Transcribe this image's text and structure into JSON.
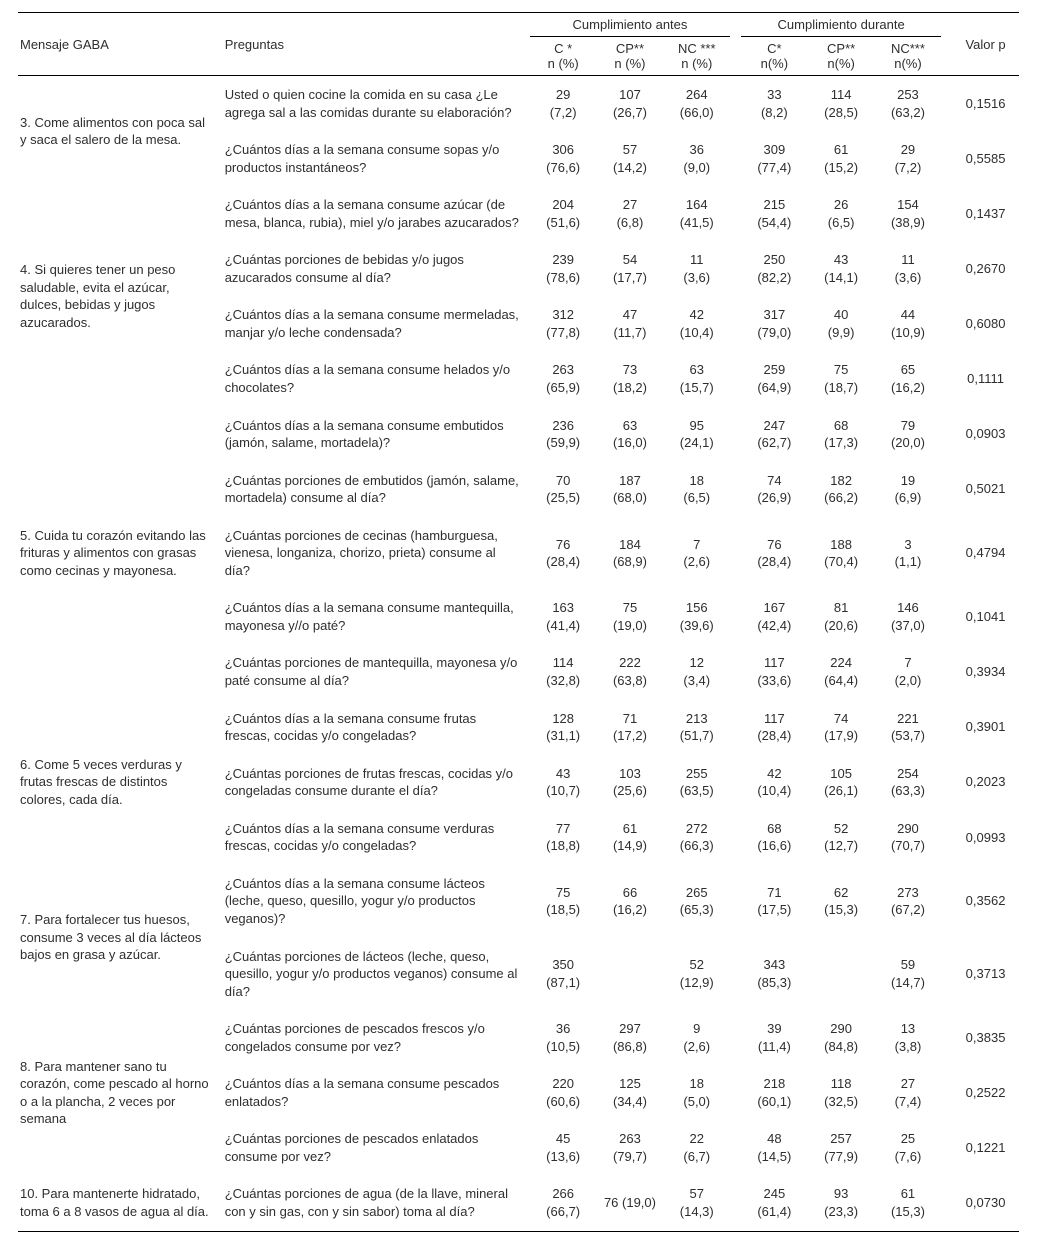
{
  "headers": {
    "mensaje": "Mensaje GABA",
    "preguntas": "Preguntas",
    "grupo_antes": "Cumplimiento antes",
    "grupo_durante": "Cumplimiento durante",
    "c_antes_l1": "C *",
    "c_antes_l2": "n (%)",
    "cp_antes_l1": "CP**",
    "cp_antes_l2": "n (%)",
    "nc_antes_l1": "NC ***",
    "nc_antes_l2": "n (%)",
    "c_dur_l1": "C*",
    "c_dur_l2": "n(%)",
    "cp_dur_l1": "CP**",
    "cp_dur_l2": "n(%)",
    "nc_dur_l1": "NC***",
    "nc_dur_l2": "n(%)",
    "valorp": "Valor p"
  },
  "rows": [
    {
      "n": [
        "29",
        "(7,2)"
      ],
      "cp": [
        "107",
        "(26,7)"
      ],
      "nc": [
        "264",
        "(66,0)"
      ],
      "n2": [
        "33",
        "(8,2)"
      ],
      "cp2": [
        "114",
        "(28,5)"
      ],
      "nc2": [
        "253",
        "(63,2)"
      ],
      "p": "0,1516",
      "q": "Usted o quien cocine la comida en su casa ¿Le agrega sal a las comidas durante su elaboración?"
    },
    {
      "n": [
        "306",
        "(76,6)"
      ],
      "cp": [
        "57",
        "(14,2)"
      ],
      "nc": [
        "36",
        "(9,0)"
      ],
      "n2": [
        "309",
        "(77,4)"
      ],
      "cp2": [
        "61",
        "(15,2)"
      ],
      "nc2": [
        "29",
        "(7,2)"
      ],
      "p": "0,5585",
      "q": "¿Cuántos días a la semana consume sopas y/o productos instantáneos?"
    },
    {
      "n": [
        "204",
        "(51,6)"
      ],
      "cp": [
        "27",
        "(6,8)"
      ],
      "nc": [
        "164",
        "(41,5)"
      ],
      "n2": [
        "215",
        "(54,4)"
      ],
      "cp2": [
        "26",
        "(6,5)"
      ],
      "nc2": [
        "154",
        "(38,9)"
      ],
      "p": "0,1437",
      "q": "¿Cuántos días a la semana consume azúcar (de mesa, blanca, rubia), miel y/o jarabes azucarados?"
    },
    {
      "n": [
        "239",
        "(78,6)"
      ],
      "cp": [
        "54",
        "(17,7)"
      ],
      "nc": [
        "11",
        "(3,6)"
      ],
      "n2": [
        "250",
        "(82,2)"
      ],
      "cp2": [
        "43",
        "(14,1)"
      ],
      "nc2": [
        "11",
        "(3,6)"
      ],
      "p": "0,2670",
      "q": "¿Cuántas porciones de bebidas y/o jugos azucarados consume al día?"
    },
    {
      "n": [
        "312",
        "(77,8)"
      ],
      "cp": [
        "47",
        "(11,7)"
      ],
      "nc": [
        "42",
        "(10,4)"
      ],
      "n2": [
        "317",
        "(79,0)"
      ],
      "cp2": [
        "40",
        "(9,9)"
      ],
      "nc2": [
        "44",
        "(10,9)"
      ],
      "p": "0,6080",
      "q": "¿Cuántos días a la semana consume mermeladas, manjar y/o leche condensada?"
    },
    {
      "n": [
        "263",
        "(65,9)"
      ],
      "cp": [
        "73",
        "(18,2)"
      ],
      "nc": [
        "63",
        "(15,7)"
      ],
      "n2": [
        "259",
        "(64,9)"
      ],
      "cp2": [
        "75",
        "(18,7)"
      ],
      "nc2": [
        "65",
        "(16,2)"
      ],
      "p": "0,1111",
      "q": "¿Cuántos días a la semana consume helados y/o chocolates?"
    },
    {
      "n": [
        "236",
        "(59,9)"
      ],
      "cp": [
        "63",
        "(16,0)"
      ],
      "nc": [
        "95",
        "(24,1)"
      ],
      "n2": [
        "247",
        "(62,7)"
      ],
      "cp2": [
        "68",
        "(17,3)"
      ],
      "nc2": [
        "79",
        "(20,0)"
      ],
      "p": "0,0903",
      "q": "¿Cuántos días a la semana consume embutidos (jamón, salame, mortadela)?"
    },
    {
      "n": [
        "70",
        "(25,5)"
      ],
      "cp": [
        "187",
        "(68,0)"
      ],
      "nc": [
        "18",
        "(6,5)"
      ],
      "n2": [
        "74",
        "(26,9)"
      ],
      "cp2": [
        "182",
        "(66,2)"
      ],
      "nc2": [
        "19",
        "(6,9)"
      ],
      "p": "0,5021",
      "q": "¿Cuántas porciones de embutidos (jamón, salame, mortadela) consume al día?"
    },
    {
      "n": [
        "76",
        "(28,4)"
      ],
      "cp": [
        "184",
        "(68,9)"
      ],
      "nc": [
        "7",
        "(2,6)"
      ],
      "n2": [
        "76",
        "(28,4)"
      ],
      "cp2": [
        "188",
        "(70,4)"
      ],
      "nc2": [
        "3",
        "(1,1)"
      ],
      "p": "0,4794",
      "q": "¿Cuántas porciones de cecinas (hamburguesa, vienesa, longaniza, chorizo, prieta) consume al día?"
    },
    {
      "n": [
        "163",
        "(41,4)"
      ],
      "cp": [
        "75",
        "(19,0)"
      ],
      "nc": [
        "156",
        "(39,6)"
      ],
      "n2": [
        "167",
        "(42,4)"
      ],
      "cp2": [
        "81",
        "(20,6)"
      ],
      "nc2": [
        "146",
        "(37,0)"
      ],
      "p": "0,1041",
      "q": "¿Cuántos días a la semana consume mantequilla, mayonesa y//o paté?"
    },
    {
      "n": [
        "114",
        "(32,8)"
      ],
      "cp": [
        "222",
        "(63,8)"
      ],
      "nc": [
        "12",
        "(3,4)"
      ],
      "n2": [
        "117",
        "(33,6)"
      ],
      "cp2": [
        "224",
        "(64,4)"
      ],
      "nc2": [
        "7",
        "(2,0)"
      ],
      "p": "0,3934",
      "q": "¿Cuántas porciones de mantequilla, mayonesa y/o paté consume al día?"
    },
    {
      "n": [
        "128",
        "(31,1)"
      ],
      "cp": [
        "71",
        "(17,2)"
      ],
      "nc": [
        "213",
        "(51,7)"
      ],
      "n2": [
        "117",
        "(28,4)"
      ],
      "cp2": [
        "74",
        "(17,9)"
      ],
      "nc2": [
        "221",
        "(53,7)"
      ],
      "p": "0,3901",
      "q": "¿Cuántos días a la semana consume frutas frescas, cocidas y/o congeladas?"
    },
    {
      "n": [
        "43",
        "(10,7)"
      ],
      "cp": [
        "103",
        "(25,6)"
      ],
      "nc": [
        "255",
        "(63,5)"
      ],
      "n2": [
        "42",
        "(10,4)"
      ],
      "cp2": [
        "105",
        "(26,1)"
      ],
      "nc2": [
        "254",
        "(63,3)"
      ],
      "p": "0,2023",
      "q": "¿Cuántas porciones de frutas frescas, cocidas y/o congeladas consume durante el día?"
    },
    {
      "n": [
        "77",
        "(18,8)"
      ],
      "cp": [
        "61",
        "(14,9)"
      ],
      "nc": [
        "272",
        "(66,3)"
      ],
      "n2": [
        "68",
        "(16,6)"
      ],
      "cp2": [
        "52",
        "(12,7)"
      ],
      "nc2": [
        "290",
        "(70,7)"
      ],
      "p": "0,0993",
      "q": "¿Cuántos días a la semana consume verduras frescas, cocidas y/o congeladas?"
    },
    {
      "n": [
        "75",
        "(18,5)"
      ],
      "cp": [
        "66",
        "(16,2)"
      ],
      "nc": [
        "265",
        "(65,3)"
      ],
      "n2": [
        "71",
        "(17,5)"
      ],
      "cp2": [
        "62",
        "(15,3)"
      ],
      "nc2": [
        "273",
        "(67,2)"
      ],
      "p": "0,3562",
      "q": "¿Cuántos días a la semana consume lácteos (leche, queso, quesillo, yogur y/o productos veganos)?"
    },
    {
      "n": [
        "350",
        "(87,1)"
      ],
      "cp": [
        "",
        ""
      ],
      "nc": [
        "52",
        "(12,9)"
      ],
      "n2": [
        "343",
        "(85,3)"
      ],
      "cp2": [
        "",
        ""
      ],
      "nc2": [
        "59",
        "(14,7)"
      ],
      "p": "0,3713",
      "q": "¿Cuántas porciones de lácteos (leche, queso, quesillo, yogur y/o productos veganos) consume al día?"
    },
    {
      "n": [
        "36",
        "(10,5)"
      ],
      "cp": [
        "297",
        "(86,8)"
      ],
      "nc": [
        "9",
        "(2,6)"
      ],
      "n2": [
        "39",
        "(11,4)"
      ],
      "cp2": [
        "290",
        "(84,8)"
      ],
      "nc2": [
        "13",
        "(3,8)"
      ],
      "p": "0,3835",
      "q": "¿Cuántas porciones de pescados frescos y/o congelados consume por vez?"
    },
    {
      "n": [
        "220",
        "(60,6)"
      ],
      "cp": [
        "125",
        "(34,4)"
      ],
      "nc": [
        "18",
        "(5,0)"
      ],
      "n2": [
        "218",
        "(60,1)"
      ],
      "cp2": [
        "118",
        "(32,5)"
      ],
      "nc2": [
        "27",
        "(7,4)"
      ],
      "p": "0,2522",
      "q": "¿Cuántos días a la semana consume pescados enlatados?"
    },
    {
      "n": [
        "45",
        "(13,6)"
      ],
      "cp": [
        "263",
        "(79,7)"
      ],
      "nc": [
        "22",
        "(6,7)"
      ],
      "n2": [
        "48",
        "(14,5)"
      ],
      "cp2": [
        "257",
        "(77,9)"
      ],
      "nc2": [
        "25",
        "(7,6)"
      ],
      "p": "0,1221",
      "q": "¿Cuántas porciones de pescados enlatados consume por vez?"
    },
    {
      "n": [
        "266",
        "(66,7)"
      ],
      "cp_single": "76 (19,0)",
      "nc": [
        "57",
        "(14,3)"
      ],
      "n2": [
        "245",
        "(61,4)"
      ],
      "cp2": [
        "93",
        "(23,3)"
      ],
      "nc2": [
        "61",
        "(15,3)"
      ],
      "p": "0,0730",
      "q": "¿Cuántas porciones de agua (de la llave, mineral con y sin gas, con y sin sabor) toma al día?"
    }
  ],
  "messages": {
    "m3": "3. Come alimentos con poca sal y saca el salero de la mesa.",
    "m4": "4. Si quieres tener un peso saludable, evita el azúcar, dulces, bebidas y jugos azucarados.",
    "m5": "5. Cuida tu corazón evitando las frituras y alimentos con grasas como cecinas y mayonesa.",
    "m6": "6. Come 5 veces verduras y frutas frescas de distintos colores, cada día.",
    "m7": "7. Para fortalecer tus huesos, consume 3 veces al día lácteos bajos en grasa y azúcar.",
    "m8": "8. Para mantener sano tu corazón, come pescado al horno o a la plancha, 2 veces por semana",
    "m10": "10. Para mantenerte hidratado, toma 6 a 8 vasos de agua al día."
  }
}
